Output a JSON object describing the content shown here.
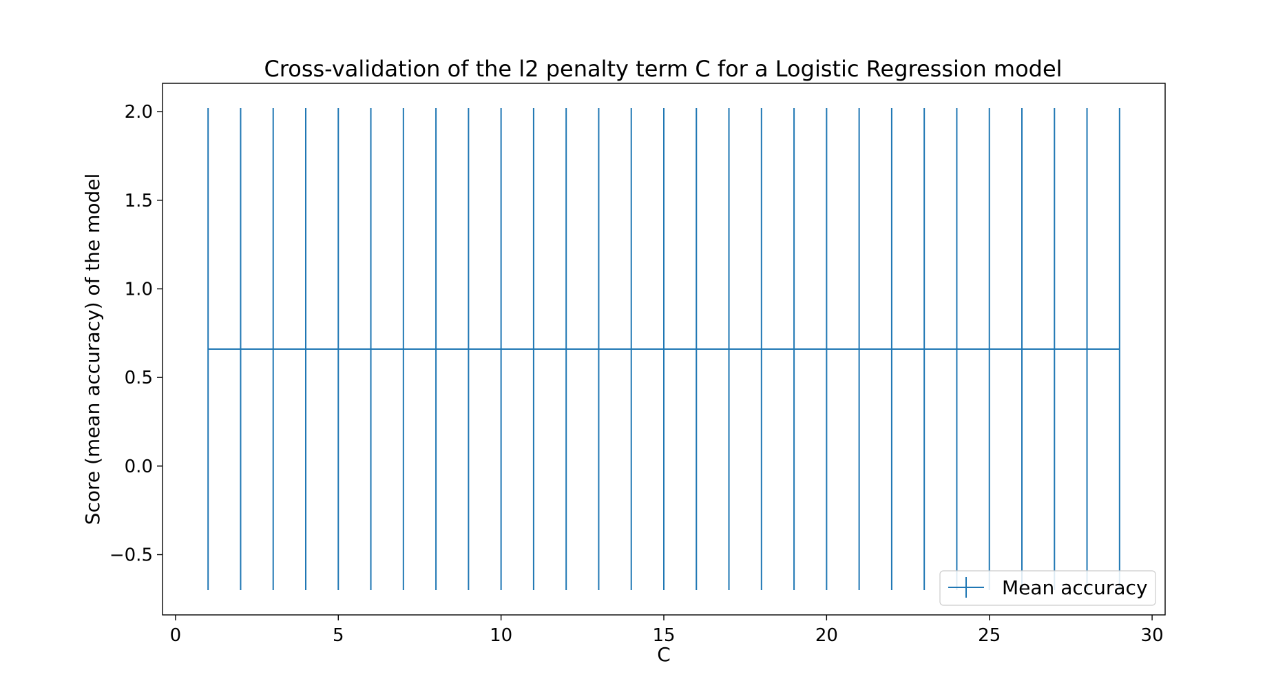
{
  "chart_data": {
    "type": "line",
    "title": "Cross-validation of the l2 penalty term C for a Logistic Regression model",
    "xlabel": "C",
    "ylabel": "Score (mean accuracy) of the model",
    "xlim": [
      -0.4,
      30.4
    ],
    "ylim": [
      -0.84,
      2.16
    ],
    "xticks": [
      0,
      5,
      10,
      15,
      20,
      25,
      30
    ],
    "xtick_labels": [
      "0",
      "5",
      "10",
      "15",
      "20",
      "25",
      "30"
    ],
    "yticks": [
      -0.5,
      0.0,
      0.5,
      1.0,
      1.5,
      2.0
    ],
    "ytick_labels": [
      "−0.5",
      "0.0",
      "0.5",
      "1.0",
      "1.5",
      "2.0"
    ],
    "grid": false,
    "legend": {
      "position": "bottom-right"
    },
    "series": [
      {
        "name": "Mean accuracy",
        "color": "#1f77b4",
        "x": [
          1,
          2,
          3,
          4,
          5,
          6,
          7,
          8,
          9,
          10,
          11,
          12,
          13,
          14,
          15,
          16,
          17,
          18,
          19,
          20,
          21,
          22,
          23,
          24,
          25,
          26,
          27,
          28,
          29
        ],
        "y": [
          0.66,
          0.66,
          0.66,
          0.66,
          0.66,
          0.66,
          0.66,
          0.66,
          0.66,
          0.66,
          0.66,
          0.66,
          0.66,
          0.66,
          0.66,
          0.66,
          0.66,
          0.66,
          0.66,
          0.66,
          0.66,
          0.66,
          0.66,
          0.66,
          0.66,
          0.66,
          0.66,
          0.66,
          0.66
        ],
        "yerr": [
          1.36,
          1.36,
          1.36,
          1.36,
          1.36,
          1.36,
          1.36,
          1.36,
          1.36,
          1.36,
          1.36,
          1.36,
          1.36,
          1.36,
          1.36,
          1.36,
          1.36,
          1.36,
          1.36,
          1.36,
          1.36,
          1.36,
          1.36,
          1.36,
          1.36,
          1.36,
          1.36,
          1.36,
          1.36
        ]
      }
    ]
  }
}
